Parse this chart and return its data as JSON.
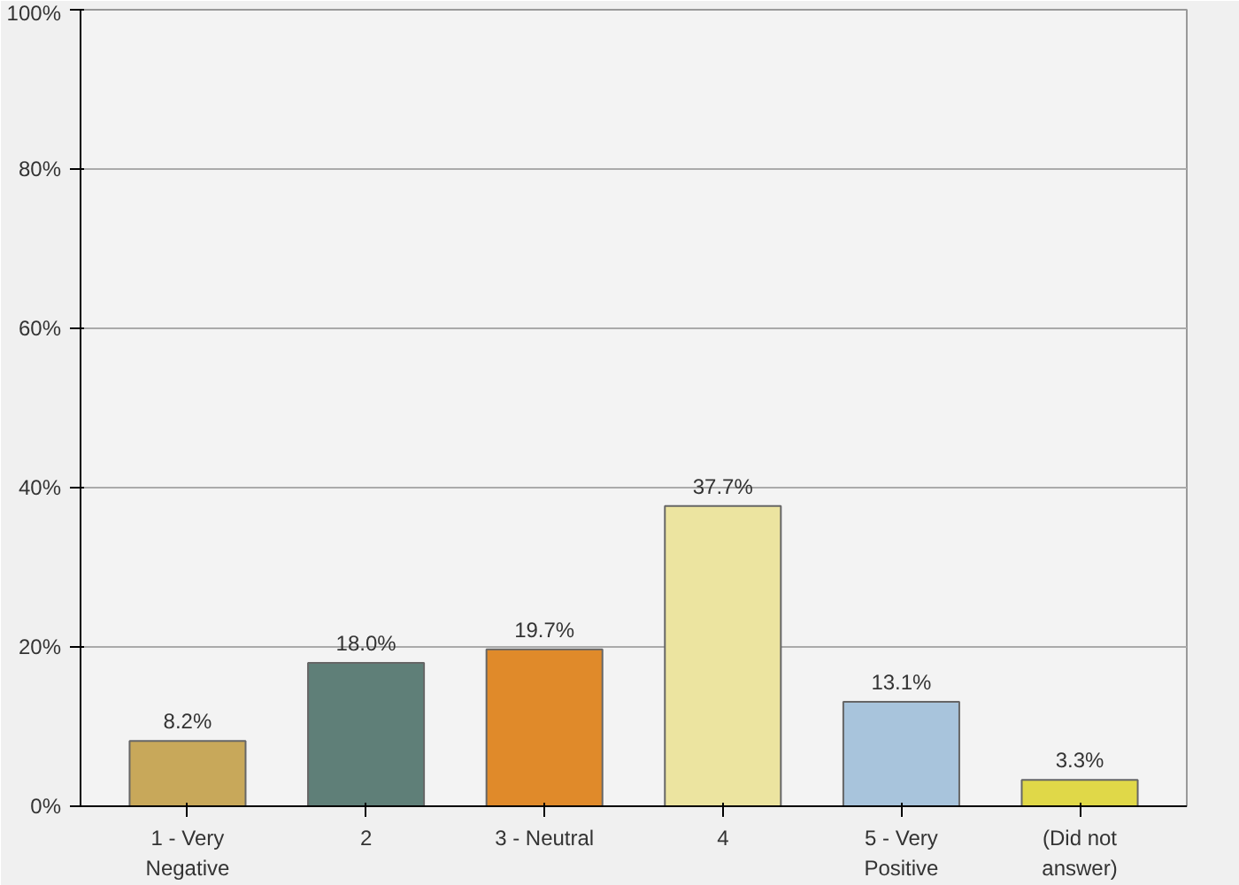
{
  "chart_data": {
    "type": "bar",
    "categories": [
      "1 - Very Negative",
      "2",
      "3 - Neutral",
      "4",
      "5 - Very Positive",
      "(Did not answer)"
    ],
    "values": [
      8.2,
      18.0,
      19.7,
      37.7,
      13.1,
      3.3
    ],
    "colors": [
      "#c8a85a",
      "#5f7f78",
      "#e08a2a",
      "#ece4a0",
      "#a8c4dc",
      "#e0d848"
    ],
    "value_labels": [
      "8.2%",
      "18.0%",
      "19.7%",
      "37.7%",
      "13.1%",
      "3.3%"
    ],
    "ylim": [
      0,
      100
    ],
    "yticks": [
      {
        "value": 0,
        "label": "0%"
      },
      {
        "value": 20,
        "label": "20%"
      },
      {
        "value": 40,
        "label": "40%"
      },
      {
        "value": 60,
        "label": "60%"
      },
      {
        "value": 80,
        "label": "80%"
      },
      {
        "value": 100,
        "label": "100%"
      }
    ],
    "grid": "y"
  }
}
